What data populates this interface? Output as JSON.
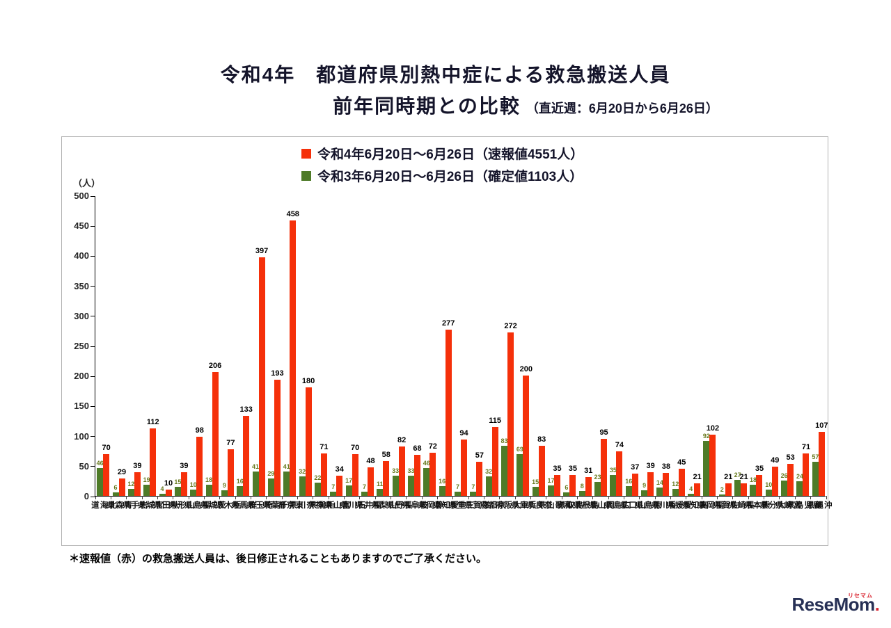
{
  "title": {
    "line1": "令和4年　都道府県別熱中症による救急搬送人員",
    "line2": "前年同時期との比較",
    "line2_note": "（直近週：6月20日から6月26日）"
  },
  "legend": {
    "items": [
      {
        "label": "令和4年6月20日～6月26日（速報値4551人）",
        "color": "#f5300a"
      },
      {
        "label": "令和3年6月20日～6月26日（確定値1103人）",
        "color": "#4e7b28"
      }
    ]
  },
  "axis": {
    "unit_label": "（人）"
  },
  "footnote": "＊速報値（赤）の救急搬送人員は、後日修正されることもありますのでご了承ください。",
  "logo": {
    "name": "ReseMom",
    "dot": ".",
    "ruby": "リセマム"
  },
  "chart_data": {
    "type": "bar",
    "title": "令和4年 都道府県別熱中症による救急搬送人員 前年同時期との比較（直近週：6月20日から6月26日）",
    "xlabel": "",
    "ylabel": "（人）",
    "ylim": [
      0,
      500
    ],
    "ytick_interval": 50,
    "grid": false,
    "legend_position": "top",
    "categories": [
      "北海道",
      "青森県",
      "岩手県",
      "宮城県",
      "秋田県",
      "山形県",
      "福島県",
      "茨城県",
      "栃木県",
      "群馬県",
      "埼玉県",
      "千葉県",
      "東京都",
      "神奈川県",
      "新潟県",
      "富山県",
      "石川県",
      "福井県",
      "山梨県",
      "長野県",
      "岐阜県",
      "静岡県",
      "愛知県",
      "三重県",
      "滋賀県",
      "京都府",
      "大阪府",
      "兵庫県",
      "奈良県",
      "和歌山県",
      "鳥取県",
      "島根県",
      "岡山県",
      "広島県",
      "山口県",
      "徳島県",
      "香川県",
      "愛媛県",
      "高知県",
      "福岡県",
      "佐賀県",
      "長崎県",
      "熊本県",
      "大分県",
      "宮崎県",
      "鹿児島県",
      "沖縄県"
    ],
    "series": [
      {
        "name": "令和3年6月20日～6月26日（確定値1103人）",
        "color": "#4e7b28",
        "values": [
          46,
          6,
          12,
          19,
          4,
          15,
          10,
          18,
          9,
          16,
          41,
          29,
          41,
          32,
          22,
          7,
          17,
          7,
          11,
          33,
          33,
          46,
          16,
          7,
          7,
          32,
          83,
          69,
          15,
          17,
          6,
          8,
          23,
          35,
          16,
          9,
          14,
          12,
          4,
          92,
          2,
          27,
          18,
          10,
          26,
          24,
          57
        ]
      },
      {
        "name": "令和4年6月20日～6月26日（速報値4551人）",
        "color": "#f5300a",
        "values": [
          70,
          29,
          39,
          112,
          10,
          39,
          98,
          206,
          77,
          133,
          397,
          193,
          458,
          180,
          71,
          34,
          70,
          48,
          58,
          82,
          68,
          72,
          277,
          94,
          57,
          115,
          272,
          200,
          83,
          35,
          35,
          31,
          95,
          74,
          37,
          39,
          38,
          45,
          21,
          102,
          21,
          21,
          35,
          49,
          53,
          71,
          107
        ]
      }
    ]
  }
}
